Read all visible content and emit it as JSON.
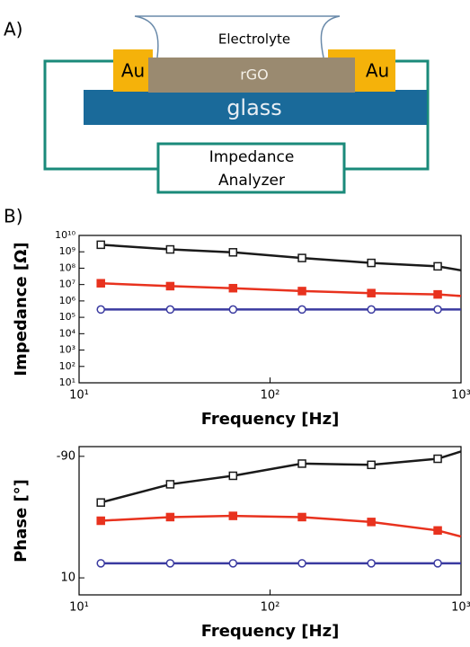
{
  "panel_a": {
    "label": "A)",
    "electrolyte": "Electrolyte",
    "au_left": "Au",
    "rgo": "rGO",
    "au_right": "Au",
    "glass": "glass",
    "analyzer_line1": "Impedance",
    "analyzer_line2": "Analyzer"
  },
  "panel_b_label": "B)",
  "chart_data": [
    {
      "type": "line",
      "ylabel": "Impedance [Ω]",
      "xlabel": "Frequency [Hz]",
      "xscale": "log",
      "yscale": "log",
      "x": [
        13,
        30,
        64,
        147,
        339,
        755,
        1000
      ],
      "xlim": [
        10,
        1000
      ],
      "xticks": [
        {
          "value": 10,
          "label": "10¹"
        },
        {
          "value": 100,
          "label": "10²"
        },
        {
          "value": 1000,
          "label": "10³"
        }
      ],
      "ylim": [
        10,
        10000000000
      ],
      "yticks": [
        {
          "value": 10,
          "label": "10¹"
        },
        {
          "value": 100,
          "label": "10²"
        },
        {
          "value": 1000,
          "label": "10³"
        },
        {
          "value": 10000,
          "label": "10⁴"
        },
        {
          "value": 100000,
          "label": "10⁵"
        },
        {
          "value": 1000000,
          "label": "10⁶"
        },
        {
          "value": 10000000,
          "label": "10⁷"
        },
        {
          "value": 100000000,
          "label": "10⁸"
        },
        {
          "value": 1000000000,
          "label": "10⁹"
        },
        {
          "value": 10000000000,
          "label": "10¹⁰"
        }
      ],
      "series": [
        {
          "color": "#1a1a1a",
          "marker": "square-open",
          "values": [
            2700000000,
            1400000000,
            930000000,
            420000000,
            210000000,
            130000000,
            74000000
          ]
        },
        {
          "color": "#e8321e",
          "marker": "square-filled",
          "values": [
            12000000,
            8000000,
            6000000,
            4000000,
            3000000,
            2500000,
            2000000
          ]
        },
        {
          "color": "#3a3aa0",
          "marker": "circle-open",
          "values": [
            300000,
            300000,
            300000,
            300000,
            300000,
            300000,
            300000
          ]
        }
      ]
    },
    {
      "type": "line",
      "ylabel": "Phase [°]",
      "xlabel": "Frequency [Hz]",
      "xscale": "log",
      "x": [
        13,
        30,
        64,
        147,
        339,
        755,
        1000
      ],
      "xlim": [
        10,
        1000
      ],
      "xticks": [
        {
          "value": 10,
          "label": "10¹"
        },
        {
          "value": 100,
          "label": "10²"
        },
        {
          "value": 1000,
          "label": "10³"
        }
      ],
      "ylim": [
        24,
        -98
      ],
      "yticks": [
        -90,
        10
      ],
      "series": [
        {
          "color": "#1a1a1a",
          "marker": "square-open",
          "values": [
            -52,
            -67,
            -74,
            -84,
            -83,
            -88,
            -94
          ]
        },
        {
          "color": "#e8321e",
          "marker": "square-filled",
          "values": [
            -37,
            -40,
            -41,
            -40,
            -36,
            -29,
            -24
          ]
        },
        {
          "color": "#3a3aa0",
          "marker": "circle-open",
          "values": [
            -2,
            -2,
            -2,
            -2,
            -2,
            -2,
            -2
          ]
        }
      ]
    }
  ]
}
